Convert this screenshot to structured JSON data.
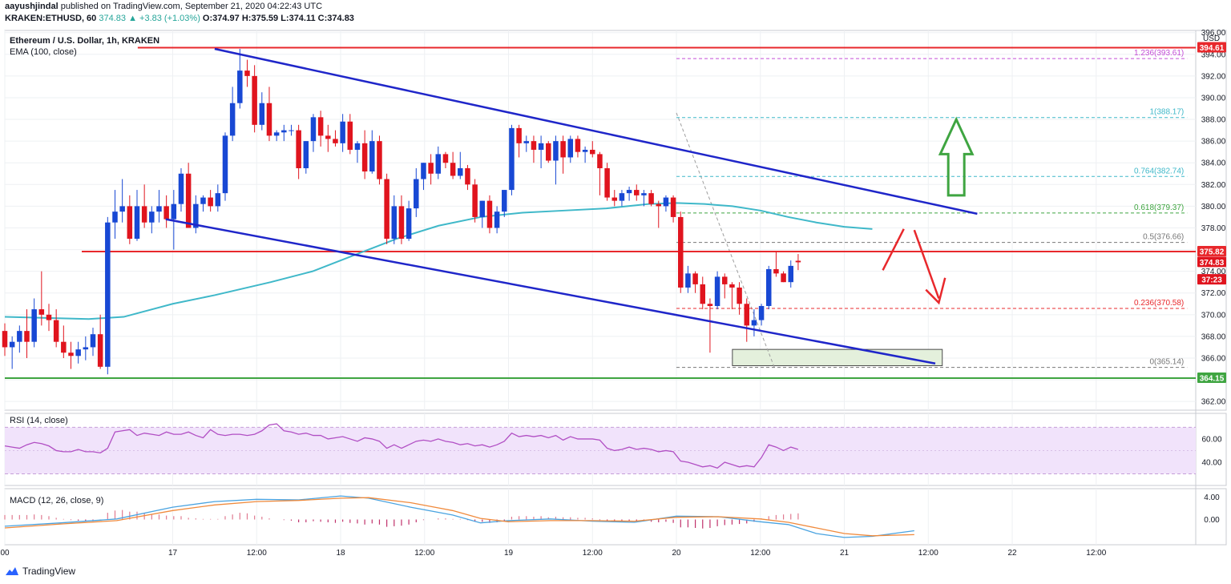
{
  "header": {
    "author": "aayushjindal",
    "published": "published on TradingView.com, September 21, 2020 04:22:43 UTC",
    "symbol": "KRAKEN:ETHUSD, 60",
    "last": "374.83",
    "change": "▲ +3.83 (+1.03%)",
    "o": "O:374.97",
    "h": "H:375.59",
    "l": "L:374.11",
    "c": "C:374.83"
  },
  "chart_title": "Ethereum / U.S. Dollar, 1h, KRAKEN",
  "ema_label": "EMA (100, close)",
  "currency_label": "USD",
  "rsi_label": "RSI (14, close)",
  "macd_label": "MACD (12, 26, close, 9)",
  "footer_brand": "TradingView",
  "colors": {
    "up": "#1848d4",
    "down": "#e0141e",
    "ema": "#3fb8c9",
    "channel": "#1f26c9",
    "resistance": "#e8282c",
    "support": "#3fa541",
    "rsi_line": "#b14fc4",
    "rsi_band": "#f1e3fb",
    "macd_line": "#4aa3e0",
    "signal_line": "#f08a3c",
    "box": "#e4f0dc"
  },
  "chart_data": {
    "type": "candlestick",
    "price_axis": {
      "ticks": [
        362,
        364,
        366,
        368,
        370,
        372,
        374,
        376,
        378,
        380,
        382,
        384,
        386,
        388,
        390,
        392,
        394,
        396
      ],
      "range": [
        361.2,
        396.2
      ]
    },
    "time_axis": {
      "labels": [
        {
          "t": 0,
          "text": "00"
        },
        {
          "t": 24,
          "text": "17"
        },
        {
          "t": 36,
          "text": "12:00"
        },
        {
          "t": 48,
          "text": "18"
        },
        {
          "t": 60,
          "text": "12:00"
        },
        {
          "t": 72,
          "text": "19"
        },
        {
          "t": 84,
          "text": "12:00"
        },
        {
          "t": 96,
          "text": "20"
        },
        {
          "t": 108,
          "text": "12:00"
        },
        {
          "t": 120,
          "text": "21"
        },
        {
          "t": 132,
          "text": "12:00"
        },
        {
          "t": 144,
          "text": "22"
        },
        {
          "t": 156,
          "text": "12:00"
        }
      ],
      "range": [
        0,
        170
      ]
    },
    "candles_ohlc": [
      [
        368.5,
        369.2,
        366.2,
        367.0
      ],
      [
        367.0,
        368.0,
        365.0,
        367.5
      ],
      [
        367.5,
        369.0,
        366.5,
        368.5
      ],
      [
        368.5,
        370.5,
        366.0,
        367.5
      ],
      [
        367.5,
        371.5,
        367.0,
        370.5
      ],
      [
        370.5,
        374.0,
        369.0,
        370.0
      ],
      [
        370.0,
        371.0,
        368.5,
        369.5
      ],
      [
        369.5,
        370.5,
        367.0,
        367.5
      ],
      [
        367.5,
        369.0,
        366.0,
        366.5
      ],
      [
        366.5,
        367.5,
        365.0,
        366.2
      ],
      [
        366.2,
        367.5,
        365.5,
        366.8
      ],
      [
        366.8,
        368.0,
        365.8,
        367.0
      ],
      [
        367.0,
        368.8,
        366.2,
        368.2
      ],
      [
        368.2,
        370.0,
        365.0,
        365.2
      ],
      [
        365.2,
        379.0,
        364.5,
        378.5
      ],
      [
        378.5,
        381.5,
        377.0,
        379.5
      ],
      [
        379.5,
        382.5,
        378.5,
        380.0
      ],
      [
        380.0,
        381.0,
        376.5,
        377.0
      ],
      [
        377.0,
        381.5,
        376.8,
        380.0
      ],
      [
        380.0,
        382.0,
        378.0,
        378.5
      ],
      [
        378.5,
        380.0,
        377.5,
        379.5
      ],
      [
        379.5,
        381.5,
        378.5,
        380.0
      ],
      [
        380.0,
        381.0,
        378.0,
        378.8
      ],
      [
        378.8,
        381.5,
        376.0,
        380.2
      ],
      [
        380.2,
        383.5,
        379.5,
        383.0
      ],
      [
        383.0,
        384.0,
        378.0,
        378.0
      ],
      [
        378.0,
        381.0,
        377.5,
        380.2
      ],
      [
        380.2,
        381.0,
        379.5,
        380.8
      ],
      [
        380.8,
        381.5,
        379.5,
        380.0
      ],
      [
        380.0,
        382.0,
        379.5,
        381.2
      ],
      [
        381.2,
        386.8,
        380.5,
        386.5
      ],
      [
        386.5,
        391.0,
        386.0,
        389.5
      ],
      [
        389.5,
        394.5,
        389.0,
        392.5
      ],
      [
        392.5,
        393.5,
        391.0,
        392.0
      ],
      [
        392.0,
        393.0,
        386.8,
        387.5
      ],
      [
        387.5,
        390.5,
        387.0,
        389.5
      ],
      [
        389.5,
        391.0,
        386.0,
        386.5
      ],
      [
        386.5,
        387.0,
        386.0,
        386.8
      ],
      [
        386.8,
        387.5,
        386.0,
        387.0
      ],
      [
        387.0,
        387.5,
        386.5,
        387.0
      ],
      [
        387.0,
        387.5,
        382.5,
        383.5
      ],
      [
        383.5,
        386.0,
        383.0,
        386.0
      ],
      [
        386.0,
        388.5,
        385.0,
        388.2
      ],
      [
        388.2,
        388.8,
        385.5,
        386.5
      ],
      [
        386.5,
        387.5,
        385.0,
        386.2
      ],
      [
        386.2,
        387.0,
        385.5,
        385.8
      ],
      [
        385.8,
        388.5,
        385.0,
        387.8
      ],
      [
        387.8,
        388.5,
        384.8,
        385.2
      ],
      [
        385.2,
        386.0,
        384.0,
        385.8
      ],
      [
        385.8,
        387.0,
        382.5,
        383.2
      ],
      [
        383.2,
        387.0,
        383.0,
        386.0
      ],
      [
        386.0,
        386.5,
        382.0,
        382.5
      ],
      [
        382.5,
        383.0,
        376.5,
        377.0
      ],
      [
        377.0,
        381.0,
        376.5,
        380.0
      ],
      [
        380.0,
        381.0,
        376.5,
        377.0
      ],
      [
        377.0,
        380.5,
        376.8,
        379.8
      ],
      [
        379.8,
        383.5,
        379.0,
        382.5
      ],
      [
        382.5,
        384.0,
        381.5,
        384.0
      ],
      [
        384.0,
        384.8,
        382.0,
        383.0
      ],
      [
        383.0,
        385.5,
        382.5,
        384.8
      ],
      [
        384.8,
        385.0,
        383.5,
        384.0
      ],
      [
        384.0,
        385.0,
        382.5,
        382.8
      ],
      [
        382.8,
        385.0,
        382.5,
        383.5
      ],
      [
        383.5,
        383.8,
        381.5,
        382.0
      ],
      [
        382.0,
        382.5,
        378.5,
        379.0
      ],
      [
        379.0,
        380.5,
        378.0,
        380.5
      ],
      [
        380.5,
        381.0,
        377.5,
        378.0
      ],
      [
        378.0,
        380.0,
        377.5,
        379.5
      ],
      [
        379.5,
        381.5,
        379.0,
        381.5
      ],
      [
        381.5,
        387.5,
        381.0,
        387.2
      ],
      [
        387.2,
        387.5,
        384.5,
        385.8
      ],
      [
        385.8,
        386.5,
        385.0,
        386.0
      ],
      [
        386.0,
        386.5,
        384.0,
        385.2
      ],
      [
        385.2,
        386.5,
        383.5,
        385.8
      ],
      [
        385.8,
        386.0,
        384.0,
        384.2
      ],
      [
        384.2,
        386.5,
        382.0,
        386.0
      ],
      [
        386.0,
        386.5,
        383.0,
        384.5
      ],
      [
        384.5,
        386.5,
        384.0,
        386.2
      ],
      [
        386.2,
        386.5,
        384.5,
        385.0
      ],
      [
        385.0,
        385.5,
        384.0,
        385.2
      ],
      [
        385.2,
        386.0,
        384.5,
        384.8
      ],
      [
        384.8,
        385.0,
        381.0,
        383.5
      ],
      [
        383.5,
        384.0,
        380.5,
        380.8
      ],
      [
        380.8,
        381.5,
        380.0,
        380.5
      ],
      [
        380.5,
        381.5,
        380.0,
        381.2
      ],
      [
        381.2,
        381.8,
        380.5,
        381.5
      ],
      [
        381.5,
        382.0,
        380.5,
        381.0
      ],
      [
        381.0,
        381.5,
        380.0,
        381.2
      ],
      [
        381.2,
        381.5,
        380.0,
        380.2
      ],
      [
        380.2,
        380.5,
        378.0,
        380.0
      ],
      [
        380.0,
        381.0,
        379.5,
        380.8
      ],
      [
        380.8,
        381.0,
        378.5,
        379.0
      ],
      [
        379.0,
        379.5,
        372.0,
        372.5
      ],
      [
        372.5,
        374.5,
        372.0,
        373.8
      ],
      [
        373.8,
        374.0,
        372.0,
        372.8
      ],
      [
        372.8,
        373.5,
        370.5,
        371.0
      ],
      [
        371.0,
        371.5,
        366.5,
        370.8
      ],
      [
        370.8,
        374.0,
        370.5,
        373.5
      ],
      [
        373.5,
        373.8,
        371.5,
        372.8
      ],
      [
        372.8,
        373.0,
        370.5,
        372.5
      ],
      [
        372.5,
        373.0,
        370.0,
        371.0
      ],
      [
        371.0,
        371.5,
        367.5,
        369.0
      ],
      [
        369.0,
        370.5,
        368.0,
        369.5
      ],
      [
        369.5,
        371.0,
        369.0,
        370.8
      ],
      [
        370.8,
        374.5,
        370.5,
        374.2
      ],
      [
        374.2,
        375.8,
        373.5,
        373.8
      ],
      [
        373.8,
        374.0,
        373.0,
        373.0
      ],
      [
        373.0,
        375.0,
        372.5,
        374.5
      ],
      [
        374.97,
        375.59,
        374.11,
        374.83
      ]
    ],
    "candle_start_hour": 0,
    "candle_step_hours": 1.05,
    "ema_100": [
      [
        0,
        369.8
      ],
      [
        12,
        369.6
      ],
      [
        17,
        369.8
      ],
      [
        24,
        371.0
      ],
      [
        30,
        371.8
      ],
      [
        38,
        373.0
      ],
      [
        44,
        374.0
      ],
      [
        50,
        375.5
      ],
      [
        56,
        377.0
      ],
      [
        62,
        378.2
      ],
      [
        68,
        379.0
      ],
      [
        74,
        379.4
      ],
      [
        80,
        379.6
      ],
      [
        86,
        379.8
      ],
      [
        92,
        380.2
      ],
      [
        96,
        380.3
      ],
      [
        100,
        380.2
      ],
      [
        104,
        380.0
      ],
      [
        108,
        379.6
      ],
      [
        112,
        379.0
      ],
      [
        116,
        378.5
      ],
      [
        120,
        378.1
      ],
      [
        124,
        377.9
      ]
    ],
    "levels": {
      "resistance_top": 394.61,
      "resistance_mid": 375.82,
      "support": 364.15,
      "current_price": 374.83,
      "countdown": "37:23",
      "labels": [
        "394.61",
        "375.82",
        "374.83",
        "37:23",
        "364.15"
      ]
    },
    "fibonacci": [
      {
        "ratio": "1.236",
        "price": 393.61
      },
      {
        "ratio": "1",
        "price": 388.17
      },
      {
        "ratio": "0.764",
        "price": 382.74
      },
      {
        "ratio": "0.618",
        "price": 379.37
      },
      {
        "ratio": "0.5",
        "price": 376.66
      },
      {
        "ratio": "0.236",
        "price": 370.58
      },
      {
        "ratio": "0",
        "price": 365.14
      }
    ],
    "channel": {
      "upper": [
        [
          30,
          394.5
        ],
        [
          139,
          379.3
        ]
      ],
      "lower": [
        [
          23,
          378.8
        ],
        [
          133,
          365.5
        ]
      ]
    },
    "demand_box": {
      "t_from": 104,
      "t_to": 134,
      "p_low": 365.3,
      "p_high": 366.8
    },
    "rsi": {
      "ticks": [
        40.0,
        60.0
      ],
      "range": [
        20,
        82
      ],
      "band": [
        30,
        70
      ],
      "values": [
        54,
        53,
        52,
        55,
        57,
        56,
        54,
        50,
        49,
        49,
        51,
        49,
        49,
        48,
        52,
        66,
        67,
        68,
        63,
        65,
        64,
        63,
        66,
        64,
        64,
        66,
        63,
        61,
        68,
        64,
        63,
        64,
        64,
        63,
        64,
        67,
        72,
        73,
        67,
        66,
        64,
        65,
        63,
        63,
        60,
        61,
        62,
        60,
        58,
        61,
        60,
        58,
        52,
        55,
        52,
        55,
        58,
        59,
        58,
        60,
        58,
        57,
        55,
        56,
        54,
        55,
        53,
        55,
        58,
        65,
        62,
        63,
        62,
        63,
        61,
        63,
        59,
        62,
        60,
        60,
        60,
        59,
        52,
        50,
        51,
        53,
        51,
        52,
        51,
        49,
        50,
        49,
        41,
        40,
        38,
        36,
        37,
        35,
        40,
        38,
        36,
        37,
        36,
        44,
        55,
        53,
        50,
        53,
        51
      ]
    },
    "macd": {
      "ticks": [
        4.0,
        0.0
      ],
      "range": [
        -4.5,
        5.5
      ],
      "hist": [
        0.8,
        0.8,
        0.8,
        0.8,
        0.9,
        0.8,
        0.6,
        0.3,
        0.1,
        -0.1,
        -0.2,
        -0.3,
        -0.3,
        -0.2,
        1.2,
        1.6,
        1.7,
        1.4,
        1.4,
        1.2,
        1.0,
        0.9,
        0.7,
        0.6,
        0.6,
        0.3,
        0.2,
        0.1,
        0.1,
        0.1,
        0.6,
        0.9,
        1.2,
        1.1,
        0.7,
        0.5,
        0.2,
        0.0,
        -0.1,
        -0.2,
        -0.5,
        -0.5,
        -0.3,
        -0.4,
        -0.5,
        -0.6,
        -0.4,
        -0.6,
        -0.7,
        -0.9,
        -0.7,
        -0.9,
        -1.3,
        -1.2,
        -1.1,
        -0.9,
        -0.5,
        -0.1,
        0.0,
        0.2,
        0.2,
        0.1,
        0.1,
        -0.1,
        -0.4,
        -0.4,
        -0.6,
        -0.5,
        -0.3,
        0.5,
        0.6,
        0.6,
        0.5,
        0.6,
        0.4,
        0.5,
        0.4,
        0.4,
        0.3,
        0.3,
        0.2,
        -0.1,
        -0.4,
        -0.5,
        -0.4,
        -0.3,
        -0.3,
        -0.3,
        -0.4,
        -0.5,
        -0.4,
        -0.6,
        -1.4,
        -1.4,
        -1.5,
        -1.6,
        -1.5,
        -1.2,
        -1.0,
        -0.9,
        -0.8,
        -0.7,
        -0.4,
        0.2,
        0.6,
        0.8,
        0.9,
        1.0,
        1.1
      ],
      "macd_line": [
        [
          0,
          -1.2
        ],
        [
          8,
          -0.6
        ],
        [
          16,
          0.1
        ],
        [
          24,
          2.2
        ],
        [
          30,
          3.2
        ],
        [
          36,
          3.6
        ],
        [
          42,
          3.5
        ],
        [
          48,
          4.2
        ],
        [
          52,
          3.8
        ],
        [
          58,
          2.2
        ],
        [
          64,
          0.8
        ],
        [
          68,
          -0.6
        ],
        [
          72,
          -0.2
        ],
        [
          78,
          0.1
        ],
        [
          84,
          -0.3
        ],
        [
          90,
          -0.5
        ],
        [
          96,
          0.6
        ],
        [
          102,
          0.5
        ],
        [
          108,
          -0.4
        ],
        [
          112,
          -0.9
        ],
        [
          116,
          -2.5
        ],
        [
          120,
          -3.2
        ],
        [
          124,
          -3.0
        ],
        [
          130,
          -2.0
        ]
      ],
      "signal_line": [
        [
          0,
          -1.5
        ],
        [
          8,
          -0.8
        ],
        [
          16,
          -0.2
        ],
        [
          24,
          1.6
        ],
        [
          30,
          2.6
        ],
        [
          36,
          3.2
        ],
        [
          42,
          3.4
        ],
        [
          48,
          3.8
        ],
        [
          52,
          3.9
        ],
        [
          58,
          3.0
        ],
        [
          64,
          1.6
        ],
        [
          68,
          0.2
        ],
        [
          72,
          -0.4
        ],
        [
          78,
          -0.2
        ],
        [
          84,
          -0.2
        ],
        [
          90,
          -0.3
        ],
        [
          96,
          0.4
        ],
        [
          102,
          0.5
        ],
        [
          108,
          0.1
        ],
        [
          112,
          -0.5
        ],
        [
          116,
          -1.5
        ],
        [
          120,
          -2.5
        ],
        [
          124,
          -2.9
        ],
        [
          130,
          -2.7
        ]
      ]
    }
  }
}
